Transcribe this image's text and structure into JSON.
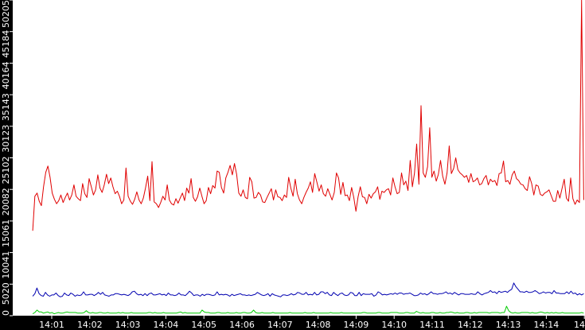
{
  "chart_data": {
    "type": "line",
    "title": "",
    "xlabel": "",
    "ylabel": "",
    "x_ticks": [
      "14:01",
      "14:02",
      "14:03",
      "14:04",
      "14:05",
      "14:06",
      "14:07",
      "14:08",
      "14:09",
      "14:10",
      "14:11",
      "14:12",
      "14:13",
      "14:14",
      "14"
    ],
    "y_ticks": [
      0,
      5020,
      10041,
      15061,
      20082,
      25102,
      30123,
      35143,
      40164,
      45184,
      50205
    ],
    "ylim": [
      0,
      50205
    ],
    "grid": false,
    "legend": "none",
    "colors": {
      "background": "#ffffff",
      "axis": "#000000",
      "tick_text": "#ffffff",
      "red": "#e00000",
      "blue": "#0000b0",
      "green": "#00cc00"
    },
    "series": [
      {
        "color": "#e00000",
        "x_start": "14:00:30",
        "x_end": "14:14:59",
        "values": [
          13500,
          19000,
          19500,
          18200,
          17500,
          20500,
          22800,
          23800,
          22000,
          19500,
          18500,
          17800,
          18300,
          19200,
          18000,
          18800,
          19500,
          18400,
          19200,
          20800,
          19000,
          18600,
          18300,
          21000,
          19400,
          18800,
          21800,
          20500,
          19200,
          20000,
          22400,
          20300,
          19600,
          20800,
          22500,
          21000,
          21900,
          20500,
          19400,
          19800,
          19000,
          17800,
          18400,
          23500,
          19000,
          18200,
          17700,
          18500,
          19700,
          18400,
          17800,
          18700,
          20300,
          22200,
          18300,
          24500,
          18100,
          17800,
          17200,
          18000,
          19000,
          18400,
          20800,
          18400,
          17800,
          17600,
          18600,
          17900,
          18700,
          19500,
          18300,
          20300,
          19500,
          21800,
          18800,
          18200,
          18900,
          20300,
          19000,
          17800,
          18300,
          20400,
          19400,
          20700,
          20300,
          23000,
          22800,
          20400,
          19500,
          21900,
          22800,
          23900,
          22400,
          24200,
          22500,
          19500,
          19000,
          20000,
          18800,
          18600,
          22000,
          21300,
          18700,
          18800,
          19600,
          19200,
          18100,
          18000,
          18800,
          19500,
          20200,
          18400,
          20000,
          18900,
          18800,
          18300,
          19200,
          18800,
          22000,
          20300,
          19000,
          21700,
          19400,
          18400,
          17800,
          18800,
          19600,
          20300,
          21300,
          19600,
          22600,
          21200,
          19800,
          20800,
          19400,
          19000,
          20200,
          19300,
          18400,
          19600,
          22700,
          21900,
          19300,
          21200,
          19100,
          19200,
          18300,
          20400,
          18800,
          16600,
          18900,
          20500,
          18900,
          18800,
          17800,
          19300,
          18700,
          19400,
          19700,
          20500,
          18500,
          19800,
          19600,
          20000,
          20200,
          19200,
          21900,
          20500,
          19400,
          19600,
          22700,
          20800,
          21400,
          19900,
          24700,
          20500,
          22700,
          27300,
          20900,
          33400,
          22700,
          22000,
          23700,
          29900,
          22000,
          23000,
          21400,
          22500,
          24700,
          22200,
          20900,
          22700,
          27000,
          22600,
          23400,
          25100,
          23200,
          22700,
          22400,
          22000,
          22300,
          21200,
          22600,
          21300,
          21500,
          21900,
          20800,
          21000,
          21800,
          22300,
          20800,
          21700,
          21300,
          21500,
          20700,
          22600,
          22700,
          24600,
          21300,
          21500,
          20900,
          22400,
          23000,
          21800,
          21500,
          20900,
          20800,
          20200,
          19900,
          22100,
          21000,
          19200,
          20800,
          20600,
          19300,
          19100,
          19500,
          19700,
          20000,
          19100,
          18200,
          18200,
          19900,
          18700,
          20200,
          21700,
          18700,
          18200,
          21900,
          18600,
          17700,
          18400,
          18000,
          50205,
          18400
        ]
      },
      {
        "color": "#0000b0",
        "x_start": "14:00:30",
        "x_end": "14:14:59",
        "values": [
          3100,
          3500,
          4400,
          3500,
          3200,
          3100,
          3700,
          3300,
          3100,
          3300,
          3300,
          3600,
          3200,
          3000,
          3100,
          3600,
          3300,
          3200,
          3600,
          3400,
          3100,
          3300,
          3200,
          3300,
          3800,
          3300,
          3300,
          3400,
          3400,
          3200,
          3400,
          3700,
          3400,
          3700,
          3300,
          3200,
          3100,
          3300,
          3300,
          3500,
          3500,
          3400,
          3300,
          3400,
          3300,
          3200,
          3400,
          3800,
          3900,
          3500,
          3300,
          3400,
          3200,
          3500,
          3200,
          3500,
          3600,
          3300,
          3300,
          3400,
          3500,
          3300,
          3400,
          3200,
          3600,
          3300,
          3300,
          3200,
          3300,
          3600,
          3300,
          3300,
          3200,
          3500,
          3900,
          3600,
          3200,
          3300,
          3300,
          3100,
          3400,
          3200,
          3400,
          3400,
          3300,
          3200,
          3300,
          3800,
          3300,
          3400,
          3300,
          3400,
          3300,
          3100,
          3400,
          3200,
          3300,
          3400,
          3500,
          3300,
          3300,
          3200,
          3300,
          3200,
          3300,
          3400,
          3700,
          3500,
          3300,
          3200,
          3300,
          3500,
          3100,
          3500,
          3300,
          3200,
          3100,
          3000,
          3300,
          3300,
          3200,
          3300,
          3500,
          3300,
          3400,
          3700,
          3600,
          3400,
          3400,
          3700,
          3300,
          3400,
          3300,
          3700,
          3300,
          3400,
          3800,
          3800,
          3500,
          3700,
          3300,
          3200,
          3700,
          3400,
          3200,
          3500,
          3600,
          3300,
          3200,
          3300,
          3700,
          3600,
          3200,
          3200,
          3700,
          3200,
          3500,
          3400,
          3400,
          3400,
          3500,
          3100,
          3300,
          3800,
          3600,
          3300,
          3400,
          3300,
          3400,
          3500,
          3400,
          3600,
          3400,
          3600,
          3600,
          3400,
          3500,
          3500,
          3600,
          3400,
          3200,
          3200,
          3300,
          3600,
          3400,
          3500,
          3300,
          3500,
          3800,
          3500,
          3500,
          3400,
          3500,
          3500,
          3600,
          3800,
          3500,
          3600,
          3400,
          3700,
          3500,
          3300,
          3500,
          3500,
          3400,
          3400,
          3400,
          3500,
          3400,
          3400,
          3800,
          3500,
          3300,
          3500,
          3600,
          3700,
          4000,
          3700,
          3800,
          3500,
          3900,
          3700,
          3800,
          3900,
          3700,
          4000,
          4200,
          5200,
          4600,
          4200,
          3800,
          3800,
          3700,
          3900,
          3700,
          3700,
          3800,
          4000,
          3800,
          3500,
          3600,
          3800,
          3600,
          3700,
          3700,
          3500,
          4000,
          3600,
          3600,
          3500,
          3500,
          3500,
          3800,
          3500,
          3900,
          3500,
          3600,
          3300,
          3500,
          3300,
          3500
        ]
      },
      {
        "color": "#00cc00",
        "x_start": "14:00:30",
        "x_end": "14:14:59",
        "values": [
          300,
          500,
          900,
          600,
          600,
          400,
          500,
          600,
          400,
          500,
          300,
          400,
          500,
          400,
          400,
          500,
          600,
          500,
          500,
          500,
          500,
          400,
          400,
          400,
          500,
          800,
          500,
          400,
          500,
          400,
          400,
          500,
          500,
          400,
          400,
          500,
          400,
          400,
          400,
          400,
          500,
          400,
          500,
          400,
          400,
          400,
          500,
          400,
          400,
          400,
          400,
          400,
          400,
          400,
          500,
          500,
          400,
          500,
          400,
          400,
          400,
          500,
          400,
          400,
          400,
          400,
          400,
          400,
          500,
          600,
          400,
          500,
          400,
          400,
          400,
          400,
          400,
          400,
          400,
          900,
          600,
          500,
          500,
          400,
          400,
          400,
          500,
          500,
          400,
          400,
          400,
          500,
          400,
          400,
          400,
          500,
          400,
          400,
          500,
          500,
          400,
          400,
          500,
          900,
          500,
          400,
          400,
          500,
          400,
          400,
          400,
          400,
          500,
          400,
          400,
          400,
          400,
          400,
          400,
          400,
          500,
          400,
          400,
          400,
          400,
          400,
          400,
          500,
          400,
          400,
          400,
          500,
          400,
          400,
          400,
          400,
          400,
          400,
          400,
          500,
          400,
          400,
          400,
          400,
          500,
          400,
          400,
          400,
          400,
          400,
          400,
          400,
          400,
          400,
          500,
          500,
          400,
          400,
          400,
          400,
          400,
          500,
          500,
          400,
          400,
          400,
          400,
          500,
          500,
          500,
          500,
          400,
          400,
          400,
          500,
          500,
          400,
          400,
          400,
          700,
          500,
          400,
          500,
          400,
          400,
          400,
          500,
          500,
          400,
          400,
          500,
          400,
          400,
          500,
          500,
          600,
          500,
          400,
          500,
          400,
          400,
          400,
          500,
          500,
          400,
          400,
          500,
          400,
          500,
          500,
          500,
          500,
          500,
          400,
          500,
          500,
          500,
          500,
          400,
          500,
          500,
          1500,
          800,
          500,
          400,
          500,
          400,
          400,
          500,
          500,
          500,
          500,
          400,
          500,
          400,
          400,
          500,
          600,
          500,
          400,
          500,
          400,
          500,
          400,
          500,
          400,
          400,
          500,
          400,
          400,
          400,
          400,
          400,
          400,
          400,
          400,
          500,
          400
        ]
      }
    ]
  }
}
